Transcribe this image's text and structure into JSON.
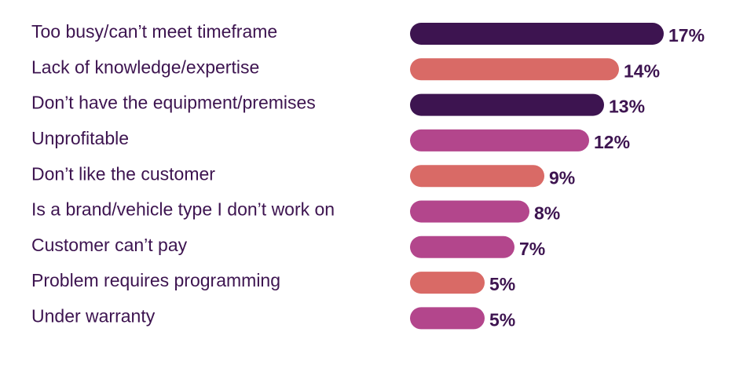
{
  "chart_data": {
    "type": "bar",
    "orientation": "horizontal",
    "title": "",
    "xlabel": "",
    "ylabel": "",
    "xlim": [
      0,
      17
    ],
    "grid": false,
    "legend": "none",
    "value_suffix": "%",
    "categories": [
      "Too busy/can’t meet timeframe",
      "Lack of knowledge/expertise",
      "Don’t have the equipment/premises",
      "Unprofitable",
      "Don’t like the customer",
      "Is a brand/vehicle type I don’t work on",
      "Customer can’t pay",
      "Problem requires programming",
      "Under warranty"
    ],
    "values": [
      17,
      14,
      13,
      12,
      9,
      8,
      7,
      5,
      5
    ],
    "value_labels": [
      "17%",
      "14%",
      "13%",
      "12%",
      "9%",
      "8%",
      "7%",
      "5%",
      "5%"
    ],
    "bar_colors": [
      "#3d1450",
      "#d96a66",
      "#3d1450",
      "#b3468c",
      "#d96a66",
      "#b3468c",
      "#b3468c",
      "#d96a66",
      "#b3468c"
    ],
    "label_color": "#3d1450"
  }
}
